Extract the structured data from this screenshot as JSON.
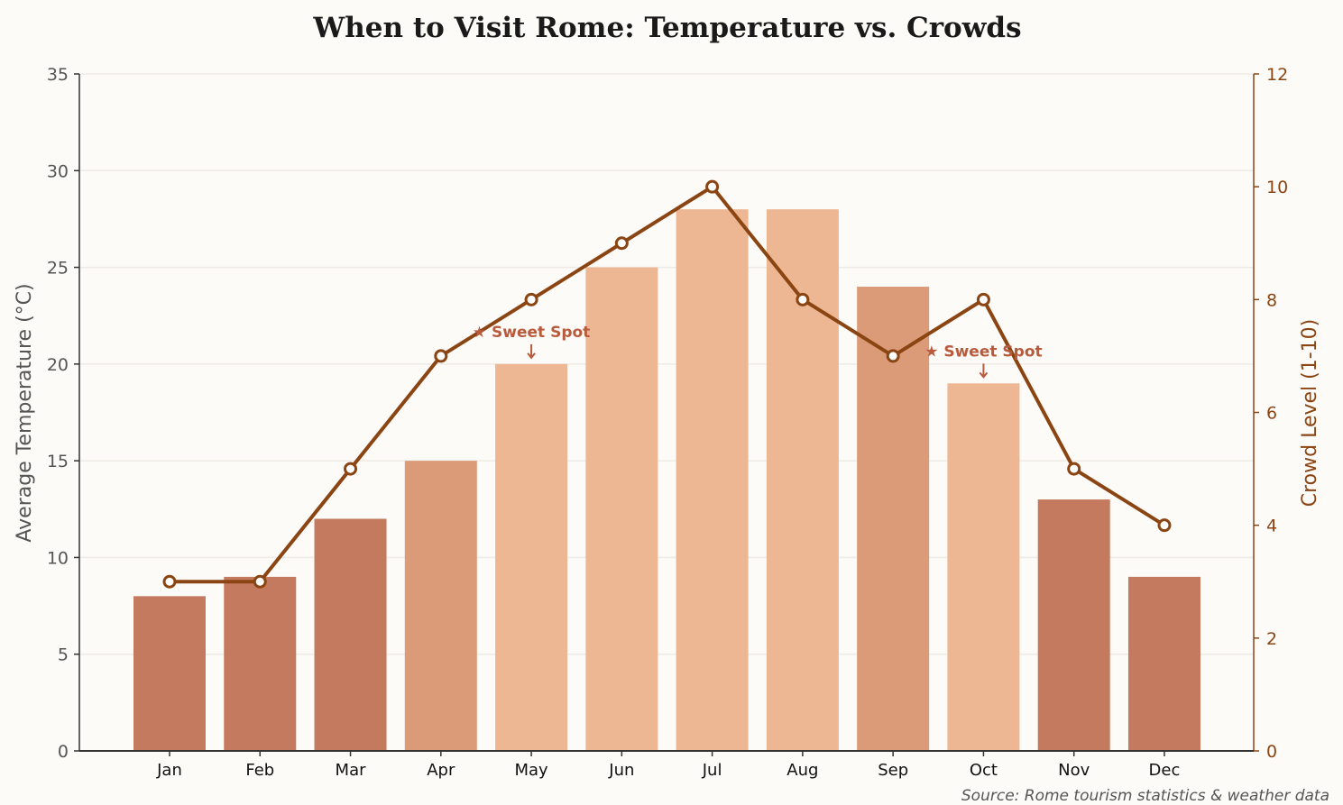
{
  "chart_data": {
    "type": "bar+line",
    "title": "When to Visit Rome: Temperature vs. Crowds",
    "categories": [
      "Jan",
      "Feb",
      "Mar",
      "Apr",
      "May",
      "Jun",
      "Jul",
      "Aug",
      "Sep",
      "Oct",
      "Nov",
      "Dec"
    ],
    "series": [
      {
        "name": "Average Temperature (°C)",
        "type": "bar",
        "axis": "left",
        "values": [
          8,
          9,
          12,
          15,
          20,
          25,
          28,
          28,
          24,
          19,
          13,
          9
        ],
        "colors": [
          "#c47a5e",
          "#c47a5e",
          "#c47a5e",
          "#dc9b78",
          "#ecb792",
          "#ecb792",
          "#ecb792",
          "#ecb792",
          "#dc9b78",
          "#ecb792",
          "#c47a5e",
          "#c47a5e"
        ]
      },
      {
        "name": "Crowd Level (1-10)",
        "type": "line",
        "axis": "right",
        "values": [
          3,
          3,
          5,
          7,
          8,
          9,
          10,
          8,
          7,
          8,
          5,
          4
        ],
        "color": "#8b4513"
      }
    ],
    "ylabel_left": "Average Temperature (°C)",
    "ylabel_right": "Crowd Level (1-10)",
    "ylim_left": [
      0,
      35
    ],
    "ylim_right": [
      0,
      12
    ],
    "yticks_left": [
      "0",
      "5",
      "10",
      "15",
      "20",
      "25",
      "30",
      "35"
    ],
    "yticks_right": [
      "0",
      "2",
      "4",
      "6",
      "8",
      "10",
      "12"
    ],
    "grid": true,
    "annotations": [
      {
        "category": "May",
        "text": "★ Sweet Spot"
      },
      {
        "category": "Oct",
        "text": "★ Sweet Spot"
      }
    ],
    "source": "Source: Rome tourism statistics & weather data"
  }
}
